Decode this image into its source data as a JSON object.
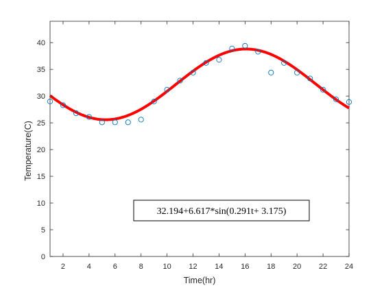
{
  "chart_data": {
    "type": "scatter",
    "title": "",
    "xlabel": "Time(hr)",
    "ylabel": "Temperature(C)",
    "xlim": [
      1,
      24
    ],
    "ylim": [
      0,
      44
    ],
    "xticks": [
      2,
      4,
      6,
      8,
      10,
      12,
      14,
      16,
      18,
      20,
      22,
      24
    ],
    "yticks": [
      0,
      5,
      10,
      15,
      20,
      25,
      30,
      35,
      40
    ],
    "grid": false,
    "series": [
      {
        "kind": "scatter",
        "marker": "open-circle",
        "color": "#0072BD",
        "x": [
          1,
          2,
          3,
          4,
          5,
          6,
          7,
          8,
          9,
          10,
          11,
          12,
          13,
          14,
          15,
          16,
          17,
          18,
          19,
          20,
          21,
          22,
          23,
          24
        ],
        "y": [
          29,
          28.3,
          26.8,
          26.1,
          25.1,
          25.1,
          25.1,
          25.6,
          29,
          31.2,
          32.9,
          34.4,
          36.2,
          36.8,
          38.9,
          39.4,
          38.3,
          34.4,
          36.2,
          34.4,
          33.3,
          31.2,
          29.4,
          28.9
        ]
      },
      {
        "kind": "line",
        "color": "#FF0000",
        "fit": {
          "a": 32.194,
          "b": 6.617,
          "w": 0.291,
          "phi": 3.175
        }
      }
    ],
    "annotation": {
      "text": "32.194+6.617*sin(0.291t+ 3.175)"
    }
  }
}
